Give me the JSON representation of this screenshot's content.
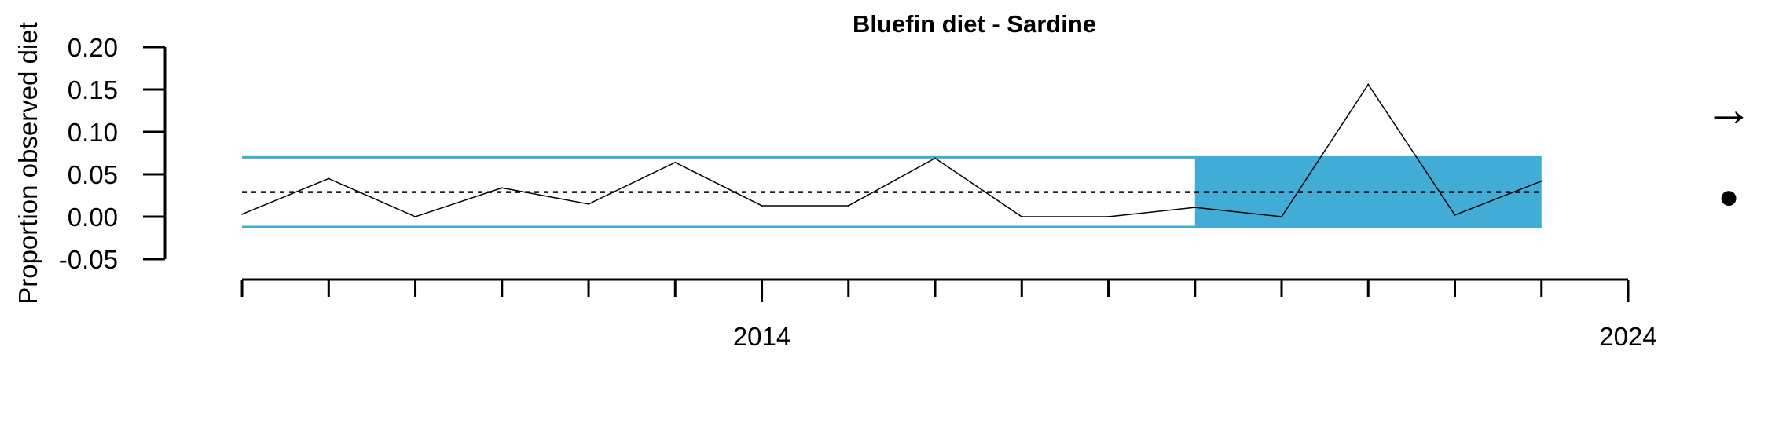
{
  "chart_data": {
    "type": "line",
    "title": "Bluefin diet - Sardine",
    "xlabel": "",
    "ylabel": "Proportion observed diet",
    "xlim": [
      2007.8,
      2024
    ],
    "ylim": [
      -0.05,
      0.2
    ],
    "y_ticks": [
      "-0.05",
      "0.00",
      "0.05",
      "0.10",
      "0.15",
      "0.20"
    ],
    "x_labeled_ticks": [
      {
        "value": 2014,
        "label": "2014"
      },
      {
        "value": 2024,
        "label": "2024"
      }
    ],
    "x_minor_ticks": [
      2008,
      2009,
      2010,
      2011,
      2012,
      2013,
      2014,
      2015,
      2016,
      2017,
      2018,
      2019,
      2020,
      2021,
      2022,
      2023,
      2024
    ],
    "series": [
      {
        "x": [
          2008,
          2009,
          2010,
          2011,
          2012,
          2013,
          2014,
          2015,
          2016,
          2017,
          2018,
          2019,
          2020,
          2021,
          2022,
          2023
        ],
        "values": [
          0.003,
          0.045,
          0.0,
          0.034,
          0.015,
          0.064,
          0.013,
          0.013,
          0.069,
          0.0,
          0.0,
          0.011,
          0.0,
          0.156,
          0.002,
          0.042
        ]
      }
    ],
    "mean": 0.029,
    "upper_band": 0.07,
    "lower_band": -0.012,
    "highlight": {
      "x_start": 2019,
      "x_end": 2023
    },
    "colors": {
      "band": "#41acd6",
      "highlight": "#41acd6",
      "line": "#000000"
    },
    "trend_symbol": "→",
    "status_symbol": "●"
  }
}
